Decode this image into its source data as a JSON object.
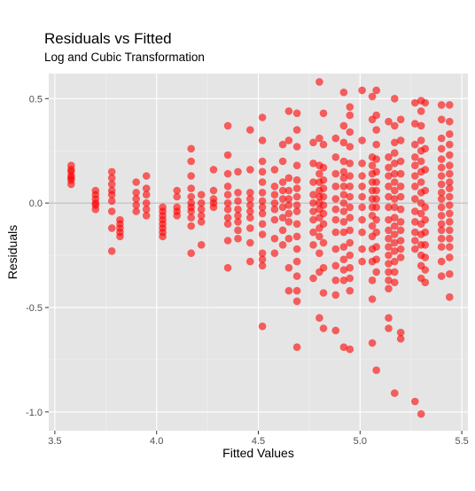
{
  "chart_data": {
    "type": "scatter",
    "title": "Residuals vs Fitted",
    "subtitle": "Log and Cubic Transformation",
    "xlabel": "Fitted Values",
    "ylabel": "Residuals",
    "xlim": [
      3.47,
      5.53
    ],
    "ylim": [
      -1.09,
      0.62
    ],
    "x_ticks": [
      3.5,
      4.0,
      4.5,
      5.0,
      5.5
    ],
    "x_tick_labels": [
      "3.5",
      "4.0",
      "4.5",
      "5.0",
      "5.5"
    ],
    "y_ticks": [
      -1.0,
      -0.5,
      0.0,
      0.5
    ],
    "y_tick_labels": [
      "-1.0",
      "-0.5",
      "0.0",
      "0.5"
    ],
    "reference_line_y": 0,
    "grid": true,
    "point_color": "#ff0000",
    "reference_line_color": "#b3b3b3",
    "panel_background": "#e5e5e5",
    "points": [
      [
        3.58,
        0.18
      ],
      [
        3.58,
        0.16
      ],
      [
        3.58,
        0.15
      ],
      [
        3.58,
        0.13
      ],
      [
        3.58,
        0.12
      ],
      [
        3.58,
        0.11
      ],
      [
        3.58,
        0.09
      ],
      [
        3.7,
        0.06
      ],
      [
        3.7,
        0.04
      ],
      [
        3.7,
        0.02
      ],
      [
        3.7,
        0.0
      ],
      [
        3.7,
        -0.01
      ],
      [
        3.7,
        -0.03
      ],
      [
        3.78,
        0.15
      ],
      [
        3.78,
        0.12
      ],
      [
        3.78,
        0.09
      ],
      [
        3.78,
        0.06
      ],
      [
        3.78,
        0.04
      ],
      [
        3.78,
        0.01
      ],
      [
        3.78,
        -0.04
      ],
      [
        3.78,
        -0.12
      ],
      [
        3.78,
        -0.23
      ],
      [
        3.82,
        -0.1
      ],
      [
        3.82,
        -0.08
      ],
      [
        3.82,
        -0.12
      ],
      [
        3.82,
        -0.14
      ],
      [
        3.82,
        -0.16
      ],
      [
        3.9,
        0.1
      ],
      [
        3.9,
        0.05
      ],
      [
        3.9,
        0.02
      ],
      [
        3.9,
        -0.01
      ],
      [
        3.9,
        -0.04
      ],
      [
        3.95,
        0.13
      ],
      [
        3.95,
        0.07
      ],
      [
        3.95,
        0.04
      ],
      [
        3.95,
        0.0
      ],
      [
        3.95,
        -0.03
      ],
      [
        3.95,
        -0.06
      ],
      [
        4.03,
        -0.02
      ],
      [
        4.03,
        -0.04
      ],
      [
        4.03,
        -0.06
      ],
      [
        4.03,
        -0.08
      ],
      [
        4.03,
        -0.1
      ],
      [
        4.03,
        -0.12
      ],
      [
        4.03,
        -0.14
      ],
      [
        4.03,
        -0.16
      ],
      [
        4.1,
        0.06
      ],
      [
        4.1,
        0.03
      ],
      [
        4.1,
        -0.02
      ],
      [
        4.1,
        -0.04
      ],
      [
        4.1,
        -0.06
      ],
      [
        4.17,
        0.26
      ],
      [
        4.17,
        0.2
      ],
      [
        4.17,
        0.13
      ],
      [
        4.17,
        0.07
      ],
      [
        4.17,
        0.03
      ],
      [
        4.17,
        0.0
      ],
      [
        4.17,
        -0.02
      ],
      [
        4.17,
        -0.04
      ],
      [
        4.17,
        -0.07
      ],
      [
        4.17,
        -0.11
      ],
      [
        4.17,
        -0.24
      ],
      [
        4.22,
        0.04
      ],
      [
        4.22,
        0.0
      ],
      [
        4.22,
        -0.03
      ],
      [
        4.22,
        -0.06
      ],
      [
        4.22,
        -0.09
      ],
      [
        4.22,
        -0.2
      ],
      [
        4.28,
        0.16
      ],
      [
        4.28,
        0.06
      ],
      [
        4.28,
        0.02
      ],
      [
        4.28,
        0.0
      ],
      [
        4.28,
        -0.02
      ],
      [
        4.35,
        0.37
      ],
      [
        4.35,
        0.23
      ],
      [
        4.35,
        0.14
      ],
      [
        4.35,
        0.08
      ],
      [
        4.35,
        0.04
      ],
      [
        4.35,
        0.0
      ],
      [
        4.35,
        -0.03
      ],
      [
        4.35,
        -0.07
      ],
      [
        4.35,
        -0.1
      ],
      [
        4.35,
        -0.18
      ],
      [
        4.35,
        -0.31
      ],
      [
        4.4,
        0.15
      ],
      [
        4.4,
        0.05
      ],
      [
        4.4,
        0.01
      ],
      [
        4.4,
        -0.03
      ],
      [
        4.4,
        -0.06
      ],
      [
        4.4,
        -0.09
      ],
      [
        4.4,
        -0.13
      ],
      [
        4.4,
        -0.17
      ],
      [
        4.46,
        0.35
      ],
      [
        4.46,
        0.16
      ],
      [
        4.46,
        0.05
      ],
      [
        4.46,
        0.02
      ],
      [
        4.46,
        -0.01
      ],
      [
        4.46,
        -0.04
      ],
      [
        4.46,
        -0.07
      ],
      [
        4.46,
        -0.12
      ],
      [
        4.46,
        -0.19
      ],
      [
        4.46,
        -0.28
      ],
      [
        4.52,
        0.41
      ],
      [
        4.52,
        0.3
      ],
      [
        4.52,
        0.2
      ],
      [
        4.52,
        0.15
      ],
      [
        4.52,
        0.1
      ],
      [
        4.52,
        0.05
      ],
      [
        4.52,
        0.01
      ],
      [
        4.52,
        -0.02
      ],
      [
        4.52,
        -0.05
      ],
      [
        4.52,
        -0.1
      ],
      [
        4.52,
        -0.15
      ],
      [
        4.52,
        -0.24
      ],
      [
        4.52,
        -0.27
      ],
      [
        4.52,
        -0.3
      ],
      [
        4.52,
        -0.59
      ],
      [
        4.58,
        0.16
      ],
      [
        4.58,
        0.08
      ],
      [
        4.58,
        0.04
      ],
      [
        4.58,
        0.0
      ],
      [
        4.58,
        -0.03
      ],
      [
        4.58,
        -0.08
      ],
      [
        4.58,
        -0.17
      ],
      [
        4.58,
        -0.24
      ],
      [
        4.62,
        0.28
      ],
      [
        4.62,
        0.2
      ],
      [
        4.62,
        0.1
      ],
      [
        4.62,
        0.06
      ],
      [
        4.62,
        0.02
      ],
      [
        4.62,
        -0.02
      ],
      [
        4.62,
        -0.07
      ],
      [
        4.62,
        -0.13
      ],
      [
        4.62,
        -0.2
      ],
      [
        4.65,
        0.44
      ],
      [
        4.65,
        0.3
      ],
      [
        4.65,
        0.12
      ],
      [
        4.65,
        0.06
      ],
      [
        4.65,
        0.02
      ],
      [
        4.65,
        -0.01
      ],
      [
        4.65,
        -0.05
      ],
      [
        4.65,
        -0.09
      ],
      [
        4.65,
        -0.17
      ],
      [
        4.65,
        -0.31
      ],
      [
        4.65,
        -0.42
      ],
      [
        4.69,
        0.43
      ],
      [
        4.69,
        0.35
      ],
      [
        4.69,
        0.27
      ],
      [
        4.69,
        0.18
      ],
      [
        4.69,
        0.11
      ],
      [
        4.69,
        0.07
      ],
      [
        4.69,
        0.03
      ],
      [
        4.69,
        -0.01
      ],
      [
        4.69,
        -0.04
      ],
      [
        4.69,
        -0.1
      ],
      [
        4.69,
        -0.16
      ],
      [
        4.69,
        -0.22
      ],
      [
        4.69,
        -0.28
      ],
      [
        4.69,
        -0.35
      ],
      [
        4.69,
        -0.42
      ],
      [
        4.69,
        -0.47
      ],
      [
        4.69,
        -0.69
      ],
      [
        4.77,
        0.29
      ],
      [
        4.77,
        0.19
      ],
      [
        4.77,
        0.1
      ],
      [
        4.77,
        0.04
      ],
      [
        4.77,
        0.0
      ],
      [
        4.77,
        -0.04
      ],
      [
        4.77,
        -0.08
      ],
      [
        4.77,
        -0.14
      ],
      [
        4.77,
        -0.2
      ],
      [
        4.77,
        -0.36
      ],
      [
        4.8,
        0.58
      ],
      [
        4.8,
        0.31
      ],
      [
        4.8,
        0.18
      ],
      [
        4.8,
        0.14
      ],
      [
        4.8,
        0.1
      ],
      [
        4.8,
        0.06
      ],
      [
        4.8,
        0.03
      ],
      [
        4.8,
        0.0
      ],
      [
        4.8,
        -0.03
      ],
      [
        4.8,
        -0.07
      ],
      [
        4.8,
        -0.12
      ],
      [
        4.8,
        -0.16
      ],
      [
        4.8,
        -0.24
      ],
      [
        4.8,
        -0.33
      ],
      [
        4.8,
        -0.55
      ],
      [
        4.82,
        0.43
      ],
      [
        4.82,
        0.28
      ],
      [
        4.82,
        0.17
      ],
      [
        4.82,
        0.11
      ],
      [
        4.82,
        0.07
      ],
      [
        4.82,
        0.03
      ],
      [
        4.82,
        -0.01
      ],
      [
        4.82,
        -0.05
      ],
      [
        4.82,
        -0.1
      ],
      [
        4.82,
        -0.19
      ],
      [
        4.82,
        -0.31
      ],
      [
        4.82,
        -0.43
      ],
      [
        4.82,
        -0.6
      ],
      [
        4.88,
        0.31
      ],
      [
        4.88,
        0.22
      ],
      [
        4.88,
        0.14
      ],
      [
        4.88,
        0.08
      ],
      [
        4.88,
        0.02
      ],
      [
        4.88,
        -0.03
      ],
      [
        4.88,
        -0.08
      ],
      [
        4.88,
        -0.14
      ],
      [
        4.88,
        -0.22
      ],
      [
        4.88,
        -0.3
      ],
      [
        4.88,
        -0.37
      ],
      [
        4.88,
        -0.44
      ],
      [
        4.88,
        -0.61
      ],
      [
        4.92,
        0.53
      ],
      [
        4.92,
        0.37
      ],
      [
        4.92,
        0.29
      ],
      [
        4.92,
        0.2
      ],
      [
        4.92,
        0.15
      ],
      [
        4.92,
        0.12
      ],
      [
        4.92,
        0.08
      ],
      [
        4.92,
        0.04
      ],
      [
        4.92,
        0.0
      ],
      [
        4.92,
        -0.04
      ],
      [
        4.92,
        -0.09
      ],
      [
        4.92,
        -0.14
      ],
      [
        4.92,
        -0.21
      ],
      [
        4.92,
        -0.27
      ],
      [
        4.92,
        -0.32
      ],
      [
        4.92,
        -0.37
      ],
      [
        4.92,
        -0.69
      ],
      [
        4.95,
        0.46
      ],
      [
        4.95,
        0.42
      ],
      [
        4.95,
        0.34
      ],
      [
        4.95,
        0.27
      ],
      [
        4.95,
        0.19
      ],
      [
        4.95,
        0.13
      ],
      [
        4.95,
        0.08
      ],
      [
        4.95,
        0.03
      ],
      [
        4.95,
        -0.02
      ],
      [
        4.95,
        -0.07
      ],
      [
        4.95,
        -0.13
      ],
      [
        4.95,
        -0.19
      ],
      [
        4.95,
        -0.25
      ],
      [
        4.95,
        -0.31
      ],
      [
        4.95,
        -0.36
      ],
      [
        4.95,
        -0.42
      ],
      [
        4.95,
        -0.7
      ],
      [
        5.01,
        0.54
      ],
      [
        5.01,
        0.3
      ],
      [
        5.01,
        0.19
      ],
      [
        5.01,
        0.13
      ],
      [
        5.01,
        0.08
      ],
      [
        5.01,
        0.03
      ],
      [
        5.01,
        -0.02
      ],
      [
        5.01,
        -0.08
      ],
      [
        5.01,
        -0.14
      ],
      [
        5.01,
        -0.22
      ],
      [
        5.01,
        -0.28
      ],
      [
        5.06,
        0.51
      ],
      [
        5.06,
        0.4
      ],
      [
        5.06,
        0.22
      ],
      [
        5.06,
        0.18
      ],
      [
        5.06,
        0.14
      ],
      [
        5.06,
        0.1
      ],
      [
        5.06,
        0.06
      ],
      [
        5.06,
        0.02
      ],
      [
        5.06,
        -0.02
      ],
      [
        5.06,
        -0.06
      ],
      [
        5.06,
        -0.11
      ],
      [
        5.06,
        -0.16
      ],
      [
        5.06,
        -0.22
      ],
      [
        5.06,
        -0.28
      ],
      [
        5.06,
        -0.37
      ],
      [
        5.06,
        -0.46
      ],
      [
        5.06,
        -0.67
      ],
      [
        5.08,
        0.54
      ],
      [
        5.08,
        0.42
      ],
      [
        5.08,
        0.35
      ],
      [
        5.08,
        0.28
      ],
      [
        5.08,
        0.21
      ],
      [
        5.08,
        0.15
      ],
      [
        5.08,
        0.1
      ],
      [
        5.08,
        0.06
      ],
      [
        5.08,
        0.02
      ],
      [
        5.08,
        -0.02
      ],
      [
        5.08,
        -0.08
      ],
      [
        5.08,
        -0.14
      ],
      [
        5.08,
        -0.21
      ],
      [
        5.08,
        -0.27
      ],
      [
        5.08,
        -0.33
      ],
      [
        5.08,
        -0.8
      ],
      [
        5.14,
        0.39
      ],
      [
        5.14,
        0.22
      ],
      [
        5.14,
        0.17
      ],
      [
        5.14,
        0.13
      ],
      [
        5.14,
        0.08
      ],
      [
        5.14,
        0.03
      ],
      [
        5.14,
        -0.02
      ],
      [
        5.14,
        -0.08
      ],
      [
        5.14,
        -0.13
      ],
      [
        5.14,
        -0.17
      ],
      [
        5.14,
        -0.21
      ],
      [
        5.14,
        -0.25
      ],
      [
        5.14,
        -0.29
      ],
      [
        5.14,
        -0.33
      ],
      [
        5.14,
        -0.37
      ],
      [
        5.14,
        -0.41
      ],
      [
        5.14,
        -0.55
      ],
      [
        5.14,
        -0.6
      ],
      [
        5.17,
        0.5
      ],
      [
        5.17,
        0.37
      ],
      [
        5.17,
        0.29
      ],
      [
        5.17,
        0.24
      ],
      [
        5.17,
        0.19
      ],
      [
        5.17,
        0.14
      ],
      [
        5.17,
        0.1
      ],
      [
        5.17,
        0.06
      ],
      [
        5.17,
        0.02
      ],
      [
        5.17,
        -0.02
      ],
      [
        5.17,
        -0.07
      ],
      [
        5.17,
        -0.11
      ],
      [
        5.17,
        -0.15
      ],
      [
        5.17,
        -0.19
      ],
      [
        5.17,
        -0.23
      ],
      [
        5.17,
        -0.28
      ],
      [
        5.17,
        -0.33
      ],
      [
        5.17,
        -0.38
      ],
      [
        5.17,
        -0.91
      ],
      [
        5.2,
        0.4
      ],
      [
        5.2,
        0.3
      ],
      [
        5.2,
        0.2
      ],
      [
        5.2,
        0.14
      ],
      [
        5.2,
        0.08
      ],
      [
        5.2,
        0.03
      ],
      [
        5.2,
        -0.03
      ],
      [
        5.2,
        -0.09
      ],
      [
        5.2,
        -0.13
      ],
      [
        5.2,
        -0.18
      ],
      [
        5.2,
        -0.22
      ],
      [
        5.2,
        -0.26
      ],
      [
        5.2,
        -0.62
      ],
      [
        5.2,
        -0.65
      ],
      [
        5.27,
        0.48
      ],
      [
        5.27,
        0.38
      ],
      [
        5.27,
        0.28
      ],
      [
        5.27,
        0.22
      ],
      [
        5.27,
        0.18
      ],
      [
        5.27,
        0.13
      ],
      [
        5.27,
        0.08
      ],
      [
        5.27,
        0.02
      ],
      [
        5.27,
        -0.04
      ],
      [
        5.27,
        -0.09
      ],
      [
        5.27,
        -0.14
      ],
      [
        5.27,
        -0.18
      ],
      [
        5.27,
        -0.22
      ],
      [
        5.27,
        -0.95
      ],
      [
        5.3,
        0.49
      ],
      [
        5.3,
        0.44
      ],
      [
        5.3,
        0.37
      ],
      [
        5.3,
        0.3
      ],
      [
        5.3,
        0.25
      ],
      [
        5.3,
        0.2
      ],
      [
        5.3,
        0.15
      ],
      [
        5.3,
        0.1
      ],
      [
        5.3,
        0.05
      ],
      [
        5.3,
        0.0
      ],
      [
        5.3,
        -0.05
      ],
      [
        5.3,
        -0.1
      ],
      [
        5.3,
        -0.15
      ],
      [
        5.3,
        -0.2
      ],
      [
        5.3,
        -0.25
      ],
      [
        5.3,
        -0.3
      ],
      [
        5.3,
        -0.36
      ],
      [
        5.3,
        -1.01
      ],
      [
        5.32,
        0.48
      ],
      [
        5.32,
        0.26
      ],
      [
        5.32,
        0.16
      ],
      [
        5.32,
        0.06
      ],
      [
        5.32,
        -0.02
      ],
      [
        5.32,
        -0.08
      ],
      [
        5.32,
        -0.14
      ],
      [
        5.32,
        -0.2
      ],
      [
        5.32,
        -0.26
      ],
      [
        5.32,
        -0.32
      ],
      [
        5.32,
        -0.38
      ],
      [
        5.4,
        0.47
      ],
      [
        5.4,
        0.4
      ],
      [
        5.4,
        0.31
      ],
      [
        5.4,
        0.26
      ],
      [
        5.4,
        0.21
      ],
      [
        5.4,
        0.17
      ],
      [
        5.4,
        0.13
      ],
      [
        5.4,
        0.09
      ],
      [
        5.4,
        0.05
      ],
      [
        5.4,
        0.02
      ],
      [
        5.4,
        -0.02
      ],
      [
        5.4,
        -0.06
      ],
      [
        5.4,
        -0.1
      ],
      [
        5.4,
        -0.13
      ],
      [
        5.4,
        -0.17
      ],
      [
        5.4,
        -0.21
      ],
      [
        5.4,
        -0.28
      ],
      [
        5.4,
        -0.35
      ],
      [
        5.44,
        0.47
      ],
      [
        5.44,
        0.39
      ],
      [
        5.44,
        0.33
      ],
      [
        5.44,
        0.28
      ],
      [
        5.44,
        0.23
      ],
      [
        5.44,
        0.18
      ],
      [
        5.44,
        0.14
      ],
      [
        5.44,
        0.1
      ],
      [
        5.44,
        0.07
      ],
      [
        5.44,
        0.03
      ],
      [
        5.44,
        -0.01
      ],
      [
        5.44,
        -0.05
      ],
      [
        5.44,
        -0.09
      ],
      [
        5.44,
        -0.13
      ],
      [
        5.44,
        -0.17
      ],
      [
        5.44,
        -0.21
      ],
      [
        5.44,
        -0.26
      ],
      [
        5.44,
        -0.34
      ],
      [
        5.44,
        -0.45
      ]
    ]
  }
}
